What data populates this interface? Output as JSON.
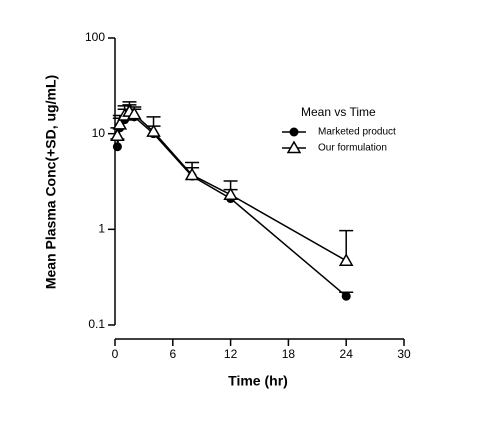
{
  "chart_data": {
    "type": "line",
    "log_y": true,
    "xlabel": "Time (hr)",
    "ylabel": "Mean Plasma Conc(+SD, ug/mL)",
    "legend_title": "Mean vs Time",
    "x": [
      0.25,
      0.5,
      1,
      1.5,
      2,
      4,
      8,
      12,
      24
    ],
    "series": [
      {
        "name": "Marketed product",
        "marker": "circle",
        "color": "#000000",
        "values": [
          7.3,
          11.5,
          14,
          16,
          15,
          10,
          3.6,
          2.1,
          0.2
        ],
        "errors": [
          1.5,
          3,
          4,
          4,
          3,
          2,
          0.8,
          0.5,
          0.02
        ]
      },
      {
        "name": "Our formulation",
        "marker": "triangle",
        "color": "#000000",
        "values": [
          9.5,
          12.5,
          15.5,
          17,
          16,
          10.5,
          3.7,
          2.3,
          0.47
        ],
        "errors": [
          2,
          3,
          4,
          4.5,
          3,
          4.5,
          1.3,
          0.9,
          0.5
        ]
      }
    ],
    "xlim": [
      0,
      30
    ],
    "xticks": [
      0,
      6,
      12,
      18,
      24,
      30
    ],
    "ylim": [
      0.1,
      100
    ],
    "yticks": [
      0.1,
      1,
      10,
      100
    ]
  }
}
